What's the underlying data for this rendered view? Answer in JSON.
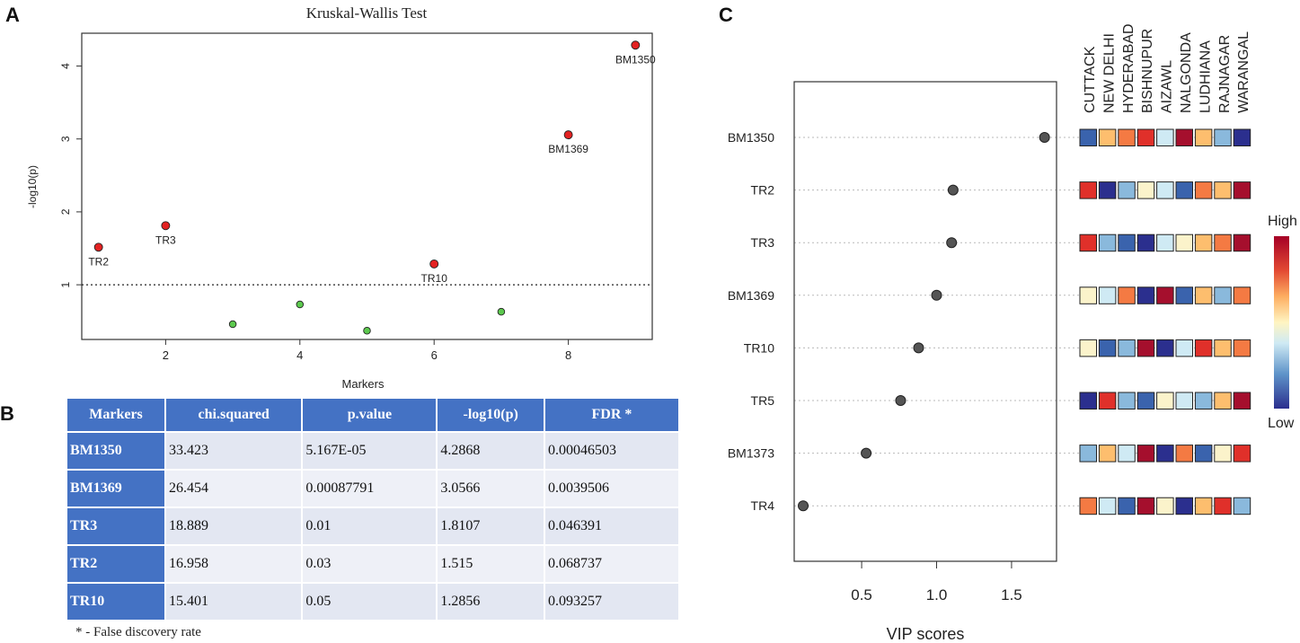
{
  "panels": {
    "a": "A",
    "b": "B",
    "c": "C"
  },
  "chart_data": [
    {
      "type": "scatter",
      "title": "Kruskal-Wallis Test",
      "xlabel": "Markers",
      "ylabel": "-log10(p)",
      "xlim": [
        0.75,
        9.25
      ],
      "ylim": [
        0.25,
        4.45
      ],
      "xticks": [
        2,
        4,
        6,
        8
      ],
      "yticks": [
        1,
        2,
        3,
        4
      ],
      "threshold": 1,
      "colors": {
        "significant": "#e32222",
        "not_significant": "#5cc94e"
      },
      "points": [
        {
          "x": 1,
          "y": 1.515,
          "label": "TR2",
          "significant": true
        },
        {
          "x": 2,
          "y": 1.8107,
          "label": "TR3",
          "significant": true
        },
        {
          "x": 3,
          "y": 0.46,
          "label": "",
          "significant": false
        },
        {
          "x": 4,
          "y": 0.73,
          "label": "",
          "significant": false
        },
        {
          "x": 5,
          "y": 0.37,
          "label": "",
          "significant": false
        },
        {
          "x": 6,
          "y": 1.2856,
          "label": "TR10",
          "significant": true
        },
        {
          "x": 7,
          "y": 0.63,
          "label": "",
          "significant": false
        },
        {
          "x": 8,
          "y": 3.0566,
          "label": "BM1369",
          "significant": true
        },
        {
          "x": 9,
          "y": 4.2868,
          "label": "BM1350",
          "significant": true
        }
      ]
    },
    {
      "type": "table",
      "columns": [
        "Markers",
        "chi.squared",
        "p.value",
        "-log10(p)",
        "FDR *"
      ],
      "rows": [
        [
          "BM1350",
          "33.423",
          "5.167E-05",
          "4.2868",
          "0.00046503"
        ],
        [
          "BM1369",
          "26.454",
          "0.00087791",
          "3.0566",
          "0.0039506"
        ],
        [
          "TR3",
          "18.889",
          "0.01",
          "1.8107",
          "0.046391"
        ],
        [
          "TR2",
          "16.958",
          "0.03",
          "1.515",
          "0.068737"
        ],
        [
          "TR10",
          "15.401",
          "0.05",
          "1.2856",
          "0.093257"
        ]
      ],
      "footnote": "* - False discovery rate"
    },
    {
      "type": "scatter",
      "subtype": "vip_dotplot_with_heatmap",
      "xlabel": "VIP scores",
      "xlim": [
        0.05,
        1.8
      ],
      "xticks": [
        0.5,
        1.0,
        1.5
      ],
      "xtick_labels": [
        "0.5",
        "1.0",
        "1.5"
      ],
      "markers": [
        "BM1350",
        "TR2",
        "TR3",
        "BM1369",
        "TR10",
        "TR5",
        "BM1373",
        "TR4"
      ],
      "vip": [
        1.72,
        1.11,
        1.1,
        1.0,
        0.88,
        0.76,
        0.53,
        0.11
      ],
      "locations": [
        "CUTTACK",
        "NEW DELHI",
        "HYDERABAD",
        "BISHNUPUR",
        "AIZAWL",
        "NALGONDA",
        "LUDHIANA",
        "RAJNAGAR",
        "WARANGAL"
      ],
      "heatmap_scale": {
        "high_label": "High",
        "low_label": "Low",
        "min": 1,
        "max": 9
      },
      "heatmap": [
        [
          2,
          6,
          7,
          8,
          4,
          9,
          6,
          3,
          1
        ],
        [
          8,
          1,
          3,
          5,
          4,
          2,
          7,
          6,
          9
        ],
        [
          8,
          3,
          2,
          1,
          4,
          5,
          6,
          7,
          9
        ],
        [
          5,
          4,
          7,
          1,
          9,
          2,
          6,
          3,
          7
        ],
        [
          5,
          2,
          3,
          9,
          1,
          4,
          8,
          6,
          7
        ],
        [
          1,
          8,
          3,
          2,
          5,
          4,
          3,
          6,
          9
        ],
        [
          3,
          6,
          4,
          9,
          1,
          7,
          2,
          5,
          8
        ],
        [
          7,
          4,
          2,
          9,
          5,
          1,
          6,
          8,
          3
        ]
      ]
    }
  ]
}
